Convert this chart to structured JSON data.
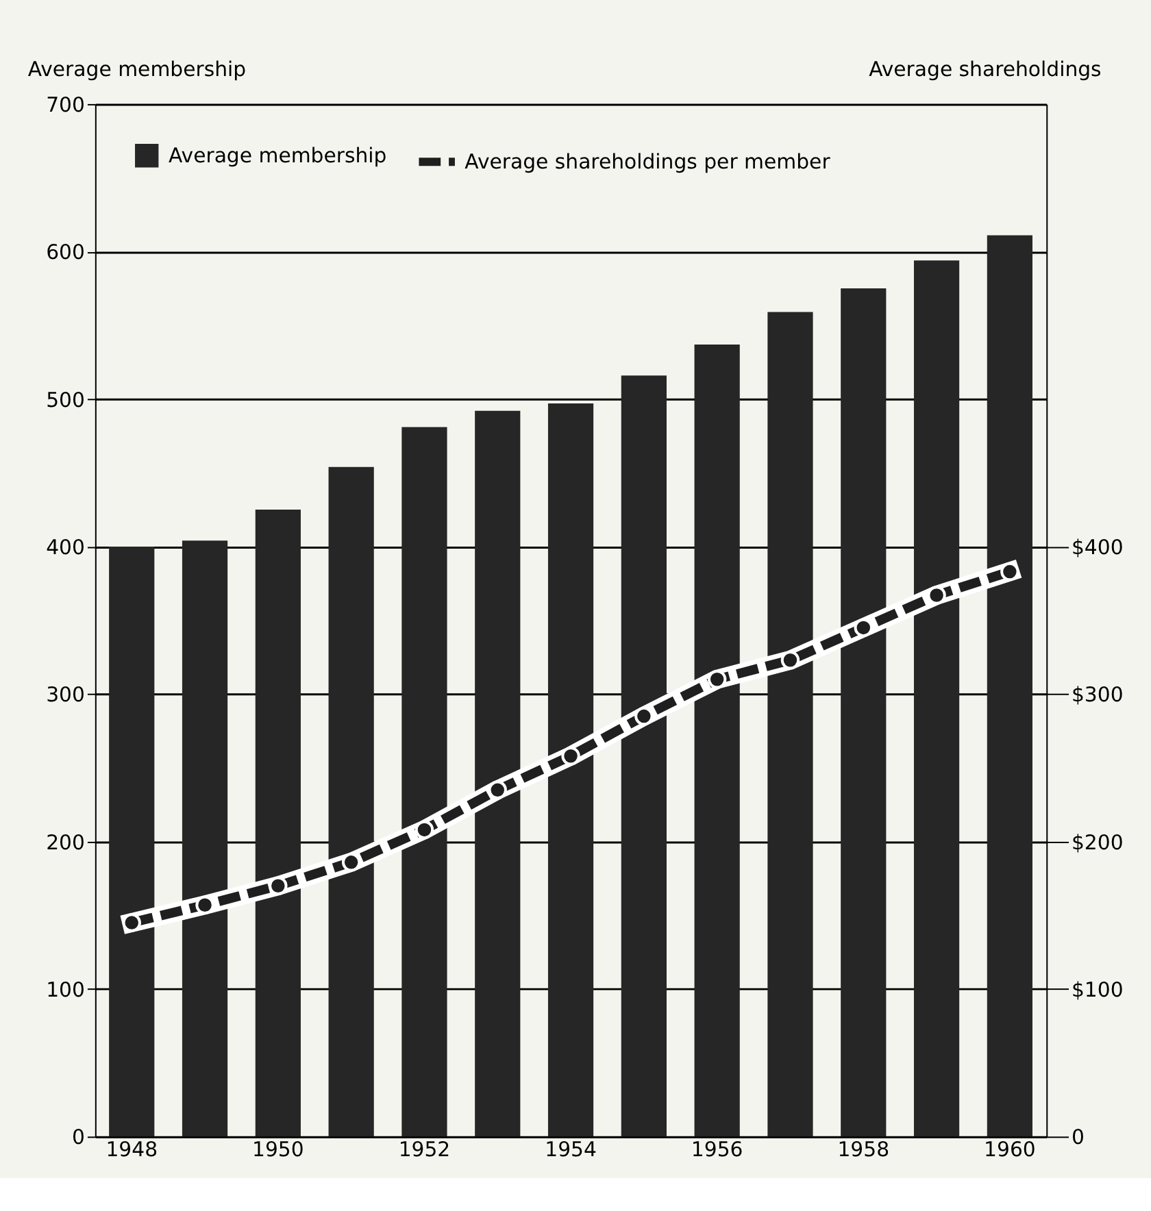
{
  "chart_data": {
    "type": "bar",
    "categories": [
      "1948",
      null,
      "1950",
      null,
      "1952",
      null,
      "1954",
      null,
      "1956",
      null,
      "1958",
      null,
      "1960"
    ],
    "ylabel": "Average membership",
    "y2label": "Average shareholdings",
    "ylim": [
      0,
      700
    ],
    "yticks": [
      0,
      100,
      200,
      300,
      400,
      500,
      600,
      700
    ],
    "y2lim": [
      0,
      700
    ],
    "y2ticks": [
      {
        "value": 0,
        "label": "0"
      },
      {
        "value": 100,
        "label": "$100"
      },
      {
        "value": 200,
        "label": "$200"
      },
      {
        "value": 300,
        "label": "$300"
      },
      {
        "value": 400,
        "label": "$400"
      }
    ],
    "grid": "y",
    "legend": "top left",
    "series": [
      {
        "name": "Average membership",
        "color": "#262626",
        "values": [
          400,
          404,
          425,
          454,
          481,
          492,
          497,
          516,
          537,
          559,
          575,
          594,
          611
        ]
      },
      {
        "name": "Average shareholdings per member",
        "type": "line",
        "axis": "y2",
        "color": "#1f1f1f",
        "marker": "circle",
        "line_style": "dashed",
        "values": [
          145,
          157,
          170,
          186,
          208,
          235,
          258,
          285,
          310,
          323,
          345,
          367,
          383
        ]
      }
    ]
  }
}
